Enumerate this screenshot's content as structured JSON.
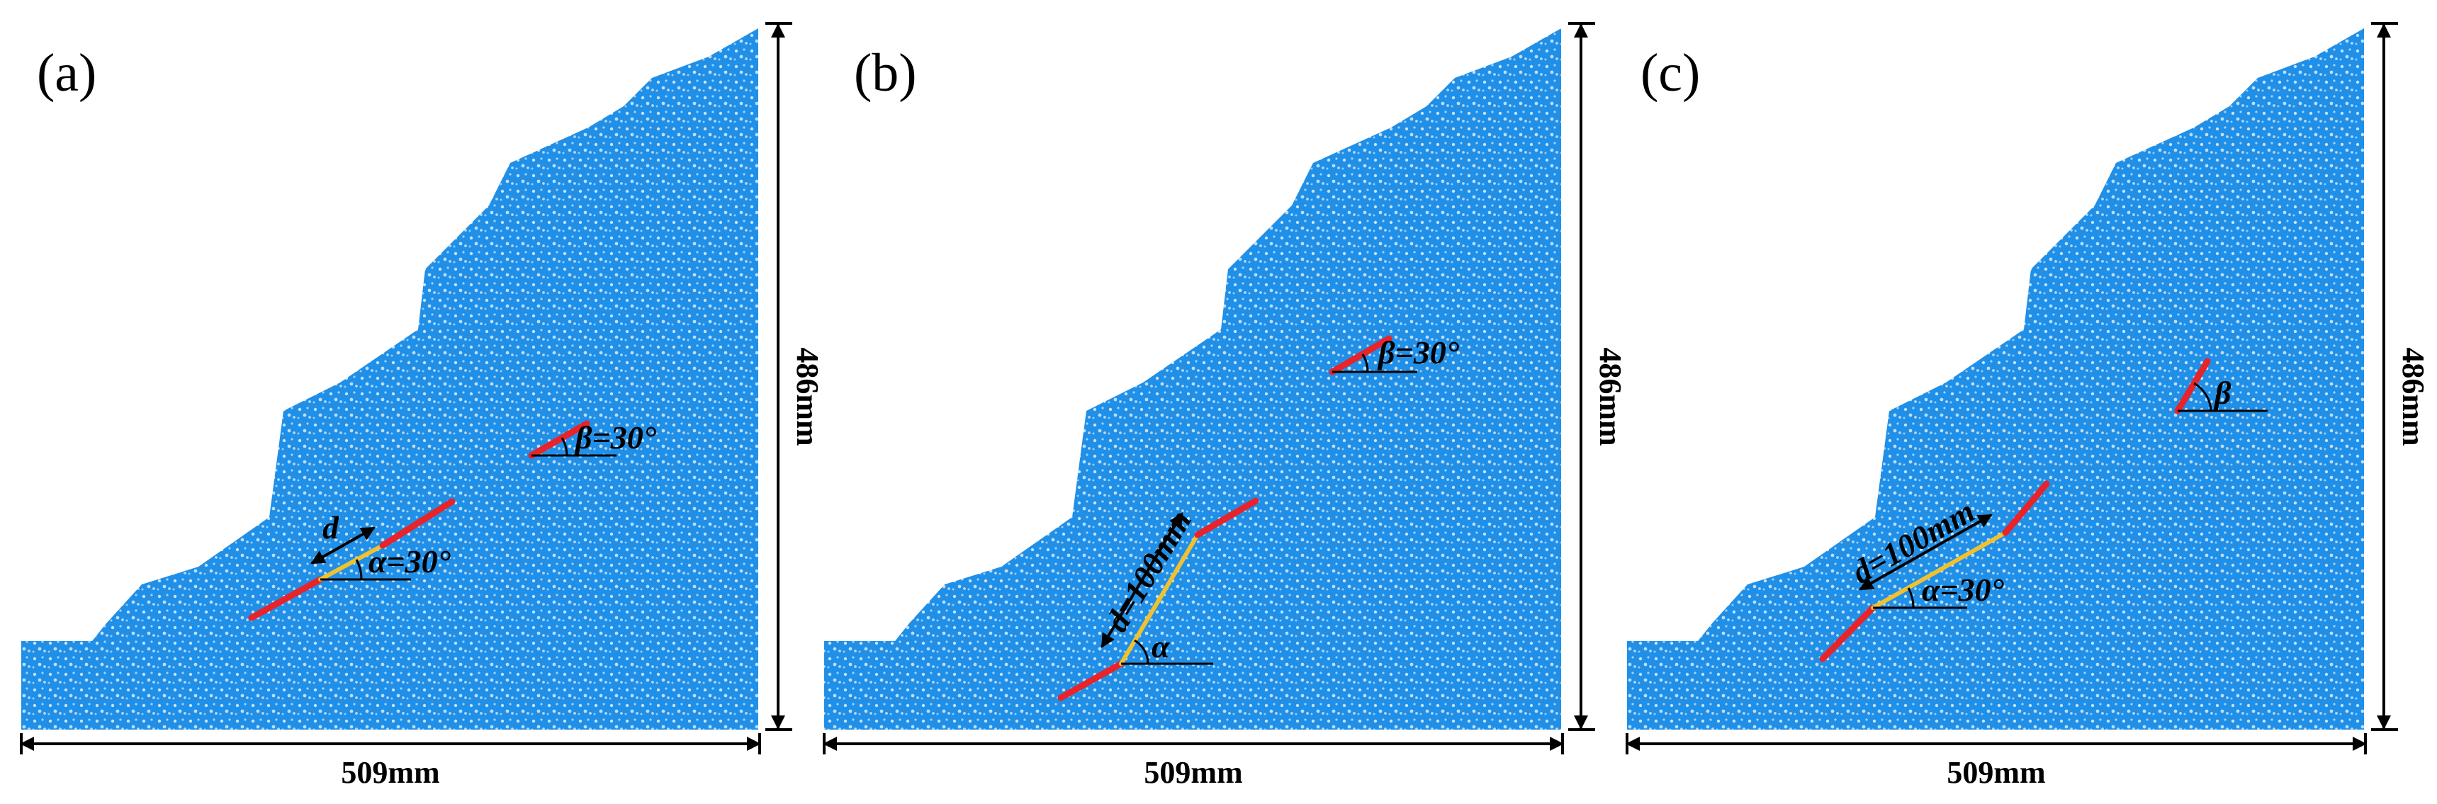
{
  "colors": {
    "particles": "#1f8fe8",
    "particle_dots": "#ffffff",
    "flaw": "#e8232a",
    "bridge": "#f2c12e",
    "lines": "#000000"
  },
  "panels": [
    {
      "label": "(a)",
      "width_label": "509mm",
      "height_label": "486mm",
      "upper_flaw_label": "β=30°",
      "lower_alpha_label": "α=30°",
      "distance_label": "d"
    },
    {
      "label": "(b)",
      "width_label": "509mm",
      "height_label": "486mm",
      "upper_flaw_label": "β=30°",
      "lower_alpha_label": "α",
      "distance_label": "d=100mm"
    },
    {
      "label": "(c)",
      "width_label": "509mm",
      "height_label": "486mm",
      "upper_flaw_label": "β",
      "lower_alpha_label": "α=30°",
      "distance_label": "d=100mm"
    }
  ]
}
